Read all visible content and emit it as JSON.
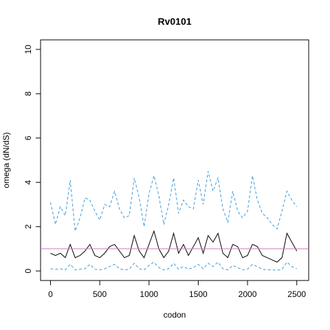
{
  "chart_data": {
    "type": "line",
    "title": "Rv0101",
    "xlabel": "codon",
    "ylabel": "omega (dN/dS)",
    "x": [
      0,
      50,
      100,
      150,
      200,
      250,
      300,
      350,
      400,
      450,
      500,
      550,
      600,
      650,
      700,
      750,
      800,
      850,
      900,
      950,
      1000,
      1050,
      1100,
      1150,
      1200,
      1250,
      1300,
      1350,
      1400,
      1450,
      1500,
      1550,
      1600,
      1650,
      1700,
      1750,
      1800,
      1850,
      1900,
      1950,
      2000,
      2050,
      2100,
      2150,
      2200,
      2250,
      2300,
      2350,
      2400,
      2450,
      2500
    ],
    "series": [
      {
        "color": "#000000",
        "dash": false,
        "values": [
          0.8,
          0.7,
          0.8,
          0.6,
          1.2,
          0.6,
          0.7,
          0.9,
          1.2,
          0.7,
          0.6,
          0.8,
          1.1,
          1.2,
          0.9,
          0.6,
          0.7,
          1.6,
          0.9,
          0.6,
          1.2,
          1.8,
          1.0,
          0.6,
          0.9,
          1.7,
          0.8,
          1.2,
          0.7,
          1.1,
          1.5,
          0.8,
          1.6,
          1.3,
          1.7,
          0.8,
          0.6,
          1.2,
          1.1,
          0.6,
          0.7,
          1.2,
          1.1,
          0.7,
          0.6,
          0.5,
          0.4,
          0.6,
          1.7,
          1.3,
          0.9
        ]
      },
      {
        "color": "#3a9ad9",
        "dash": true,
        "values": [
          3.1,
          2.1,
          2.9,
          2.5,
          4.1,
          1.8,
          2.4,
          3.3,
          3.2,
          2.7,
          2.3,
          3.0,
          2.9,
          3.6,
          2.8,
          2.4,
          2.5,
          4.2,
          3.3,
          2.0,
          3.5,
          4.3,
          3.4,
          2.1,
          3.0,
          4.2,
          2.6,
          3.2,
          2.9,
          2.8,
          4.1,
          3.0,
          4.5,
          3.6,
          4.2,
          2.8,
          2.2,
          3.6,
          2.7,
          2.4,
          2.7,
          4.3,
          3.2,
          2.6,
          2.4,
          2.1,
          1.9,
          2.7,
          3.6,
          3.2,
          2.9
        ]
      },
      {
        "color": "#3a9ad9",
        "dash": true,
        "values": [
          0.1,
          0.08,
          0.1,
          0.05,
          0.3,
          0.05,
          0.08,
          0.1,
          0.3,
          0.08,
          0.05,
          0.1,
          0.2,
          0.3,
          0.1,
          0.05,
          0.08,
          0.35,
          0.1,
          0.05,
          0.25,
          0.4,
          0.15,
          0.05,
          0.1,
          0.35,
          0.08,
          0.2,
          0.08,
          0.15,
          0.3,
          0.1,
          0.35,
          0.2,
          0.4,
          0.1,
          0.05,
          0.25,
          0.15,
          0.05,
          0.08,
          0.3,
          0.2,
          0.08,
          0.05,
          0.05,
          0.03,
          0.08,
          0.4,
          0.2,
          0.1
        ]
      }
    ],
    "hline": 1,
    "hline_color": "#c77cc7",
    "xlim": [
      -101,
      2621
    ],
    "ylim": [
      -0.43,
      10.43
    ],
    "xticks": [
      0,
      500,
      1000,
      1500,
      2000,
      2500
    ],
    "yticks": [
      0,
      2,
      4,
      6,
      8,
      10
    ]
  }
}
